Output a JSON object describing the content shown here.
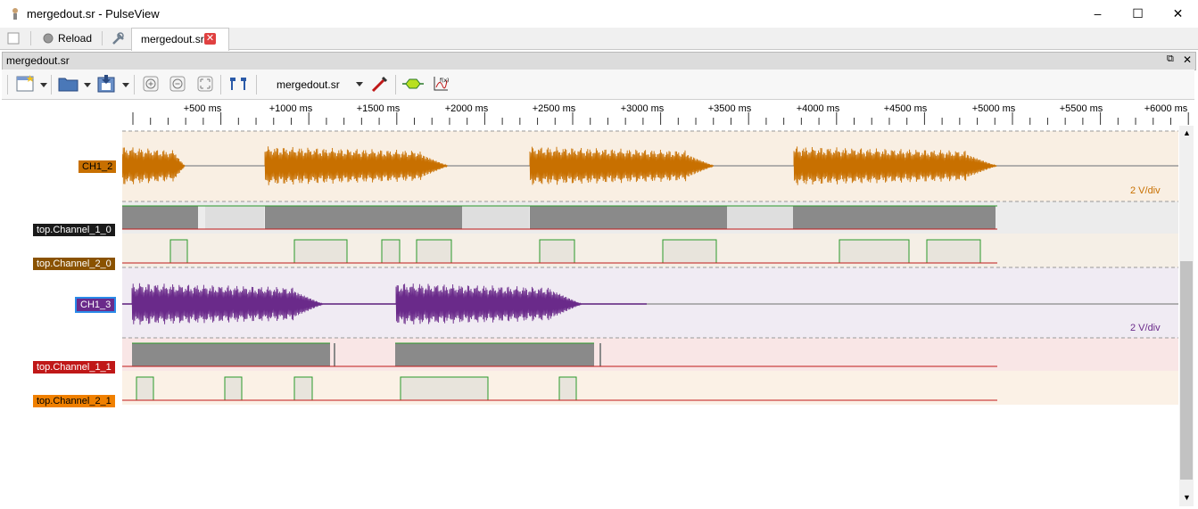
{
  "window": {
    "title": "mergedout.sr - PulseView"
  },
  "tabbar": {
    "reload_label": "Reload",
    "document_tab": "mergedout.sr"
  },
  "session": {
    "title": "mergedout.sr"
  },
  "toolbar": {
    "device_label": "mergedout.sr"
  },
  "ruler": {
    "ticks": [
      "+500 ms",
      "+1000 ms",
      "+1500 ms",
      "+2000 ms",
      "+2500 ms",
      "+3000 ms",
      "+3500 ms",
      "+4000 ms",
      "+4500 ms",
      "+5000 ms",
      "+5500 ms",
      "+6000 ms"
    ]
  },
  "channels": {
    "ch1_2": {
      "label": "CH1_2",
      "color": "#c87000",
      "scale": "2 V/div"
    },
    "top_channel_1_0": {
      "label": "top.Channel_1_0",
      "color": "#1a1a1a"
    },
    "top_channel_2_0": {
      "label": "top.Channel_2_0",
      "color": "#8a5200"
    },
    "ch1_3": {
      "label": "CH1_3",
      "color": "#6a2a8a",
      "scale": "2 V/div"
    },
    "top_channel_1_1": {
      "label": "top.Channel_1_1",
      "color": "#c01818"
    },
    "top_channel_2_1": {
      "label": "top.Channel_2_1",
      "color": "#f08000"
    }
  }
}
